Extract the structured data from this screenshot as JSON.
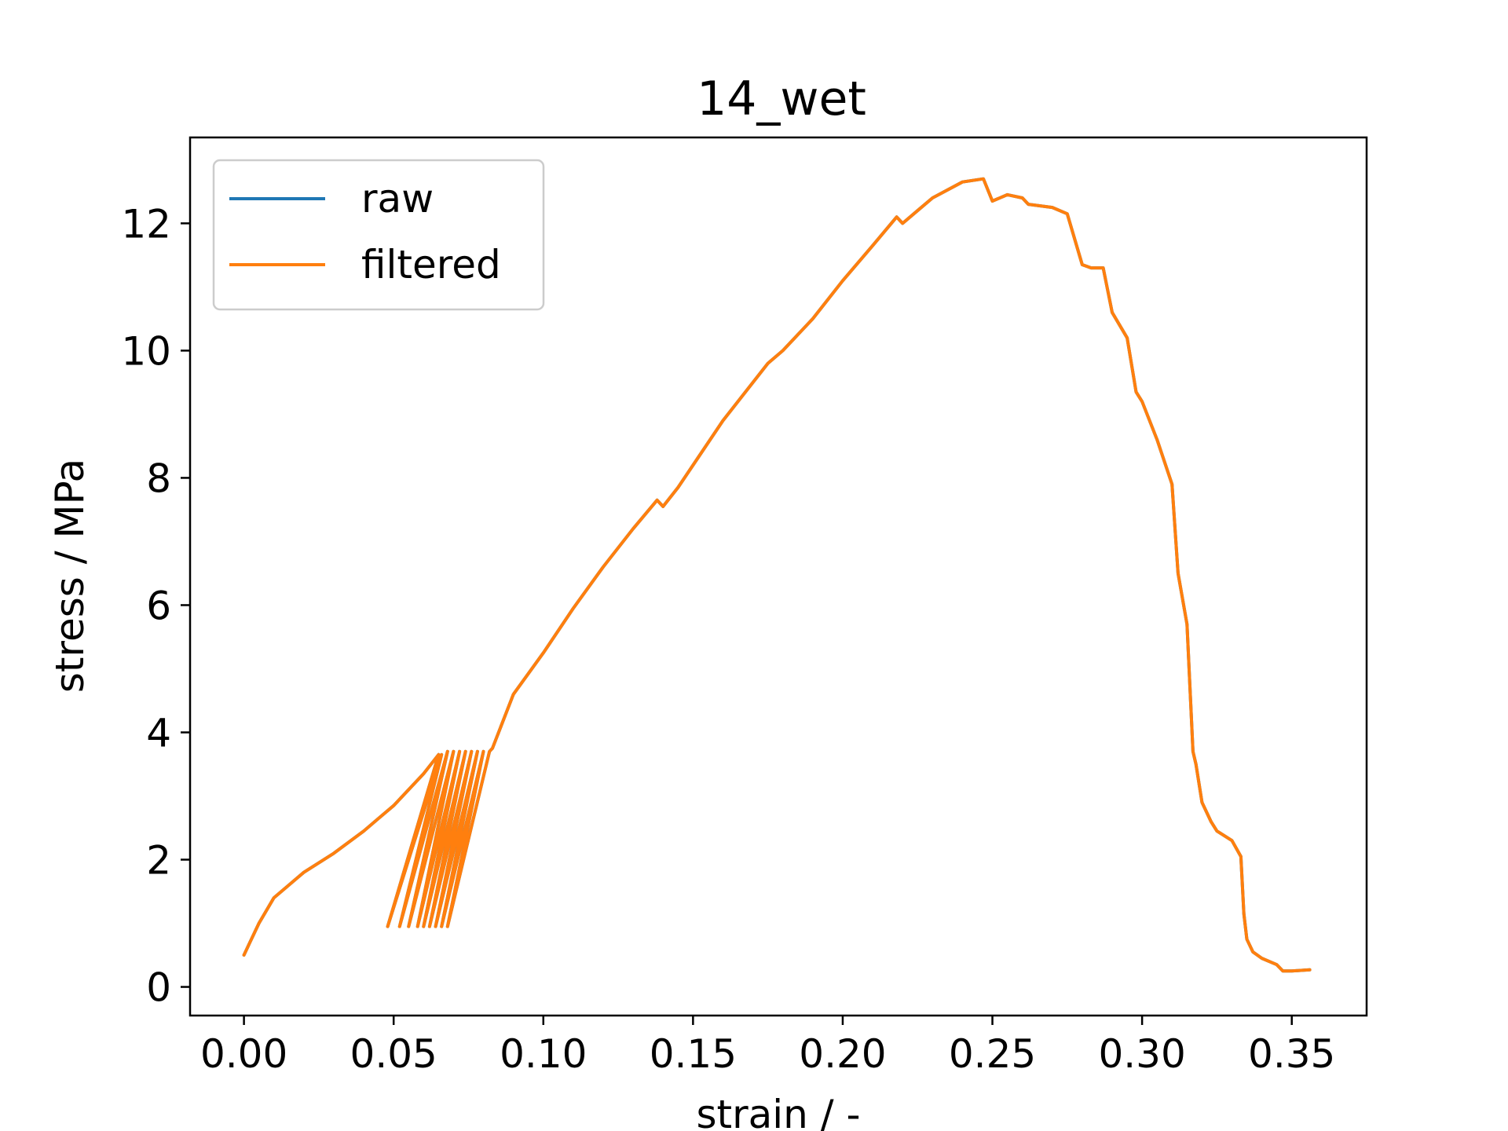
{
  "chart_data": {
    "type": "line",
    "title": "14_wet",
    "xlabel": "strain / -",
    "ylabel": "stress / MPa",
    "xlim": [
      -0.018,
      0.375
    ],
    "ylim": [
      -0.45,
      13.35
    ],
    "xticks": [
      0.0,
      0.05,
      0.1,
      0.15,
      0.2,
      0.25,
      0.3,
      0.35
    ],
    "xtick_labels": [
      "0.00",
      "0.05",
      "0.10",
      "0.15",
      "0.20",
      "0.25",
      "0.30",
      "0.35"
    ],
    "yticks": [
      0,
      2,
      4,
      6,
      8,
      10,
      12
    ],
    "ytick_labels": [
      "0",
      "2",
      "4",
      "6",
      "8",
      "10",
      "12"
    ],
    "grid": false,
    "legend_position": "upper-left",
    "colors": {
      "raw": "#1f77b4",
      "filtered": "#ff7f0e"
    },
    "series": [
      {
        "name": "raw",
        "x": [
          0.0,
          0.002,
          0.005,
          0.01,
          0.015,
          0.02,
          0.03,
          0.04,
          0.045,
          0.05,
          0.055,
          0.06,
          0.065,
          0.048,
          0.066,
          0.052,
          0.068,
          0.055,
          0.07,
          0.058,
          0.072,
          0.06,
          0.074,
          0.062,
          0.076,
          0.064,
          0.078,
          0.066,
          0.08,
          0.068,
          0.082,
          0.083,
          0.09,
          0.1,
          0.11,
          0.12,
          0.13,
          0.138,
          0.14,
          0.145,
          0.16,
          0.175,
          0.18,
          0.19,
          0.2,
          0.21,
          0.218,
          0.22,
          0.225,
          0.23,
          0.24,
          0.247,
          0.25,
          0.255,
          0.26,
          0.262,
          0.27,
          0.275,
          0.28,
          0.283,
          0.287,
          0.29,
          0.295,
          0.298,
          0.3,
          0.305,
          0.31,
          0.312,
          0.315,
          0.317,
          0.318,
          0.32,
          0.323,
          0.325,
          0.33,
          0.333,
          0.334,
          0.335,
          0.337,
          0.34,
          0.345,
          0.347,
          0.35,
          0.356
        ],
        "y": [
          0.5,
          0.7,
          1.0,
          1.4,
          1.6,
          1.8,
          2.1,
          2.45,
          2.65,
          2.85,
          3.1,
          3.35,
          3.65,
          0.95,
          3.65,
          0.95,
          3.7,
          0.95,
          3.7,
          0.95,
          3.7,
          0.95,
          3.7,
          0.95,
          3.7,
          0.95,
          3.7,
          0.95,
          3.7,
          0.95,
          3.7,
          3.75,
          4.6,
          5.25,
          5.95,
          6.6,
          7.2,
          7.65,
          7.55,
          7.85,
          8.9,
          9.8,
          10.0,
          10.5,
          11.1,
          11.65,
          12.1,
          12.0,
          12.2,
          12.4,
          12.65,
          12.7,
          12.35,
          12.45,
          12.4,
          12.3,
          12.25,
          12.15,
          11.35,
          11.3,
          11.3,
          10.6,
          10.2,
          9.35,
          9.2,
          8.6,
          7.9,
          6.5,
          5.7,
          3.7,
          3.5,
          2.9,
          2.6,
          2.45,
          2.3,
          2.05,
          1.15,
          0.75,
          0.55,
          0.45,
          0.35,
          0.25,
          0.25,
          0.27
        ]
      },
      {
        "name": "filtered",
        "x": [
          0.0,
          0.002,
          0.005,
          0.01,
          0.015,
          0.02,
          0.03,
          0.04,
          0.045,
          0.05,
          0.055,
          0.06,
          0.065,
          0.048,
          0.066,
          0.052,
          0.068,
          0.055,
          0.07,
          0.058,
          0.072,
          0.06,
          0.074,
          0.062,
          0.076,
          0.064,
          0.078,
          0.066,
          0.08,
          0.068,
          0.082,
          0.083,
          0.09,
          0.1,
          0.11,
          0.12,
          0.13,
          0.138,
          0.14,
          0.145,
          0.16,
          0.175,
          0.18,
          0.19,
          0.2,
          0.21,
          0.218,
          0.22,
          0.225,
          0.23,
          0.24,
          0.247,
          0.25,
          0.255,
          0.26,
          0.262,
          0.27,
          0.275,
          0.28,
          0.283,
          0.287,
          0.29,
          0.295,
          0.298,
          0.3,
          0.305,
          0.31,
          0.312,
          0.315,
          0.317,
          0.318,
          0.32,
          0.323,
          0.325,
          0.33,
          0.333,
          0.334,
          0.335,
          0.337,
          0.34,
          0.345,
          0.347,
          0.35,
          0.356
        ],
        "y": [
          0.5,
          0.7,
          1.0,
          1.4,
          1.6,
          1.8,
          2.1,
          2.45,
          2.65,
          2.85,
          3.1,
          3.35,
          3.65,
          0.95,
          3.65,
          0.95,
          3.7,
          0.95,
          3.7,
          0.95,
          3.7,
          0.95,
          3.7,
          0.95,
          3.7,
          0.95,
          3.7,
          0.95,
          3.7,
          0.95,
          3.7,
          3.75,
          4.6,
          5.25,
          5.95,
          6.6,
          7.2,
          7.65,
          7.55,
          7.85,
          8.9,
          9.8,
          10.0,
          10.5,
          11.1,
          11.65,
          12.1,
          12.0,
          12.2,
          12.4,
          12.65,
          12.7,
          12.35,
          12.45,
          12.4,
          12.3,
          12.25,
          12.15,
          11.35,
          11.3,
          11.3,
          10.6,
          10.2,
          9.35,
          9.2,
          8.6,
          7.9,
          6.5,
          5.7,
          3.7,
          3.5,
          2.9,
          2.6,
          2.45,
          2.3,
          2.05,
          1.15,
          0.75,
          0.55,
          0.45,
          0.35,
          0.25,
          0.25,
          0.27
        ]
      }
    ]
  }
}
